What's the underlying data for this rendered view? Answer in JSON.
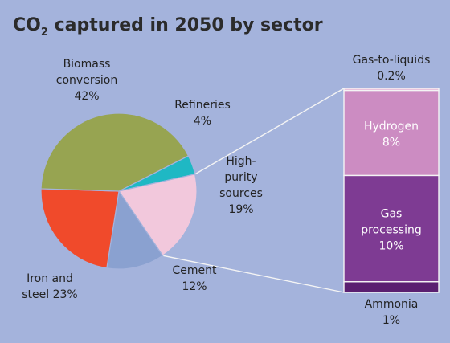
{
  "chart_data": [
    {
      "type": "pie",
      "title_main": "CO",
      "title_sub": "2",
      "title_rest": " captured in 2050 by sector",
      "slices": [
        {
          "key": "refineries",
          "label_lines": [
            "Refineries"
          ],
          "value_label": "4%",
          "value": 4,
          "color": "#1fb8c4"
        },
        {
          "key": "high-purity",
          "label_lines": [
            "High-",
            "purity",
            "sources"
          ],
          "value_label": "19%",
          "value": 19,
          "color": "#f2c8dc"
        },
        {
          "key": "cement",
          "label_lines": [
            "Cement"
          ],
          "value_label": "12%",
          "value": 12,
          "color": "#8aa1d0"
        },
        {
          "key": "iron-steel",
          "label_lines": [
            "Iron and",
            "steel 23%"
          ],
          "value_label": "",
          "value": 23,
          "color": "#f04a2b"
        },
        {
          "key": "biomass",
          "label_lines": [
            "Biomass",
            "conversion"
          ],
          "value_label": "42%",
          "value": 42,
          "color": "#97a451"
        }
      ]
    },
    {
      "type": "bar",
      "stacked": true,
      "parent": "High-purity sources",
      "segments": [
        {
          "key": "gas-to-liquids",
          "label_lines": [
            "Gas-to-liquids"
          ],
          "value_label": "0.2%",
          "value": 0.2,
          "color": "#e8c0dc"
        },
        {
          "key": "hydrogen",
          "label_lines": [
            "Hydrogen"
          ],
          "value_label": "8%",
          "value": 8,
          "color": "#cc8cc2"
        },
        {
          "key": "gas-processing",
          "label_lines": [
            "Gas",
            "processing"
          ],
          "value_label": "10%",
          "value": 10,
          "color": "#7e3b93"
        },
        {
          "key": "ammonia",
          "label_lines": [
            "Ammonia"
          ],
          "value_label": "1%",
          "value": 1,
          "color": "#5a1f70"
        }
      ]
    }
  ]
}
